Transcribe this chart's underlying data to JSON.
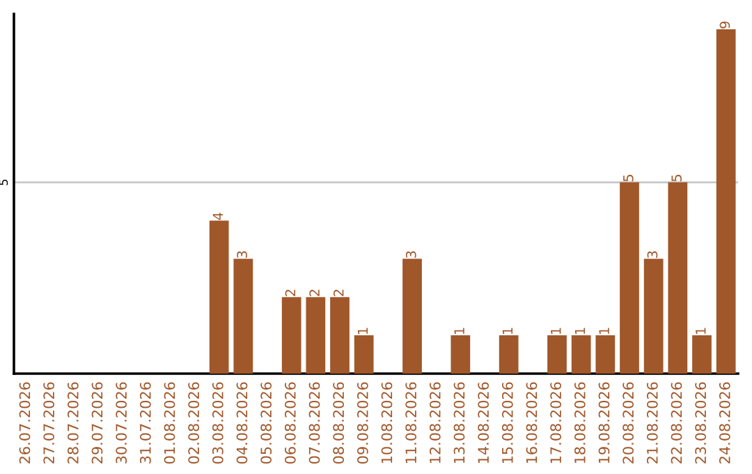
{
  "chart_data": {
    "type": "bar",
    "categories": [
      "26.07.2026",
      "27.07.2026",
      "28.07.2026",
      "29.07.2026",
      "30.07.2026",
      "31.07.2026",
      "01.08.2026",
      "02.08.2026",
      "03.08.2026",
      "04.08.2026",
      "05.08.2026",
      "06.08.2026",
      "07.08.2026",
      "08.08.2026",
      "09.08.2026",
      "10.08.2026",
      "11.08.2026",
      "12.08.2026",
      "13.08.2026",
      "14.08.2026",
      "15.08.2026",
      "16.08.2026",
      "17.08.2026",
      "18.08.2026",
      "19.08.2026",
      "20.08.2026",
      "21.08.2026",
      "22.08.2026",
      "23.08.2026",
      "24.08.2026"
    ],
    "values": [
      0,
      0,
      0,
      0,
      0,
      0,
      0,
      0,
      4,
      3,
      0,
      2,
      2,
      2,
      1,
      0,
      3,
      0,
      1,
      0,
      1,
      0,
      1,
      1,
      1,
      5,
      3,
      5,
      1,
      9
    ],
    "value_labels": [
      null,
      null,
      null,
      null,
      null,
      null,
      null,
      null,
      "4",
      "3",
      null,
      "2",
      "2",
      "2",
      "1",
      null,
      "3",
      null,
      "1",
      null,
      "1",
      null,
      "1",
      "1",
      "1",
      "5",
      "3",
      "5",
      "1",
      "9"
    ],
    "color": "#a0572a",
    "ylim": [
      0,
      9.4
    ],
    "yticks": [
      5
    ],
    "grid": "y",
    "legend": false
  }
}
